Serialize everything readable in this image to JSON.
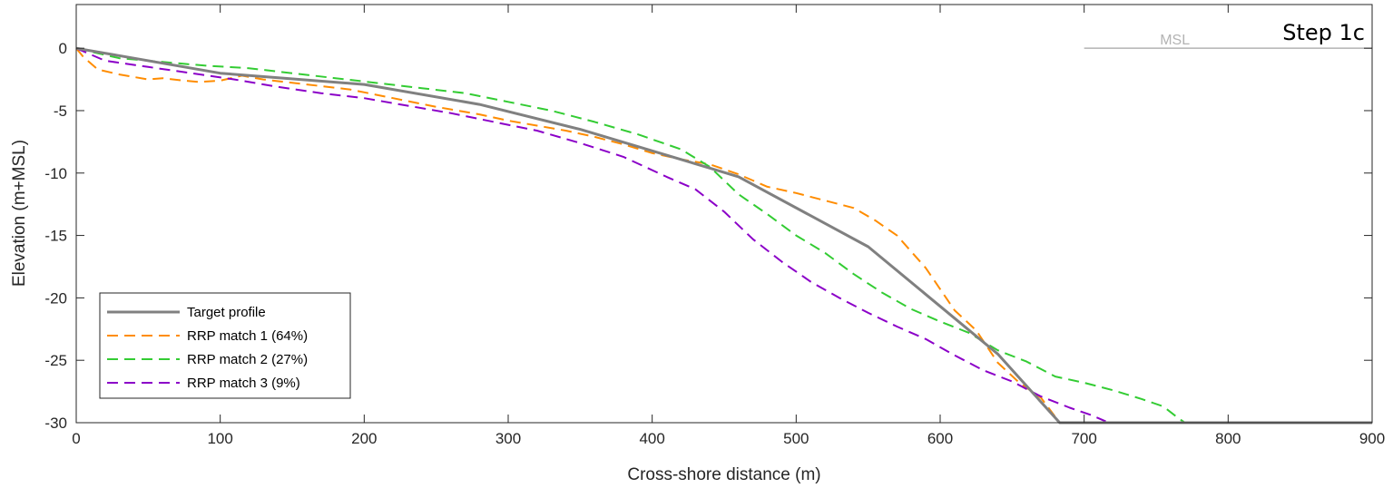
{
  "chart_data": {
    "type": "line",
    "xlabel": "Cross-shore distance (m)",
    "ylabel": "Elevation (m+MSL)",
    "xlim": [
      0,
      900
    ],
    "ylim": [
      -30,
      3.5
    ],
    "xticks": [
      0,
      100,
      200,
      300,
      400,
      500,
      600,
      700,
      800,
      900
    ],
    "yticks": [
      0,
      -5,
      -10,
      -15,
      -20,
      -25,
      -30
    ],
    "grid": false,
    "legend_position": "bottom-left",
    "annotations": {
      "step_label": "Step 1c",
      "msl_label": "MSL",
      "msl_line": {
        "x": [
          700,
          900
        ],
        "y": 0
      }
    },
    "series": [
      {
        "name": "Target profile",
        "color": "#808080",
        "style": "solid",
        "x": [
          0,
          100,
          200,
          280,
          350,
          440,
          460,
          550,
          640,
          683,
          900
        ],
        "y": [
          0,
          -2,
          -2.9,
          -4.5,
          -6.5,
          -9.6,
          -10.3,
          -15.9,
          -24.5,
          -30,
          -30
        ]
      },
      {
        "name": "RRP match 1 (64%)",
        "color": "#ff8c00",
        "style": "dashed",
        "x": [
          0,
          5,
          15,
          30,
          50,
          60,
          75,
          85,
          100,
          115,
          130,
          160,
          190,
          220,
          250,
          280,
          300,
          320,
          340,
          360,
          380,
          400,
          420,
          440,
          460,
          480,
          500,
          520,
          540,
          555,
          570,
          590,
          610,
          625,
          640,
          655,
          670,
          683
        ],
        "y": [
          0,
          -0.7,
          -1.7,
          -2.1,
          -2.5,
          -2.4,
          -2.6,
          -2.7,
          -2.6,
          -2.2,
          -2.5,
          -2.9,
          -3.3,
          -4.0,
          -4.7,
          -5.3,
          -5.8,
          -6.2,
          -6.6,
          -7.1,
          -7.7,
          -8.4,
          -8.9,
          -9.3,
          -10.1,
          -11.1,
          -11.6,
          -12.2,
          -12.8,
          -13.8,
          -15.0,
          -17.6,
          -21.0,
          -22.6,
          -25.2,
          -26.8,
          -28.0,
          -30
        ]
      },
      {
        "name": "RRP match 2 (27%)",
        "color": "#33cc33",
        "style": "dashed",
        "x": [
          0,
          30,
          60,
          90,
          120,
          150,
          180,
          210,
          240,
          270,
          300,
          330,
          360,
          390,
          420,
          440,
          460,
          480,
          500,
          520,
          540,
          560,
          580,
          600,
          620,
          640,
          660,
          680,
          700,
          720,
          740,
          755,
          765,
          770
        ],
        "y": [
          0,
          -0.8,
          -1.1,
          -1.4,
          -1.6,
          -2.0,
          -2.4,
          -2.8,
          -3.2,
          -3.6,
          -4.3,
          -5.0,
          -5.9,
          -6.9,
          -8.1,
          -9.5,
          -11.7,
          -13.3,
          -15.0,
          -16.4,
          -18.1,
          -19.6,
          -20.9,
          -21.9,
          -22.8,
          -24.2,
          -25.1,
          -26.3,
          -26.8,
          -27.4,
          -28.1,
          -28.7,
          -29.6,
          -30
        ]
      },
      {
        "name": "RRP match 3 (9%)",
        "color": "#8b00c8",
        "style": "dashed",
        "x": [
          0,
          20,
          50,
          80,
          110,
          140,
          170,
          200,
          230,
          260,
          290,
          320,
          350,
          380,
          410,
          430,
          450,
          470,
          490,
          510,
          530,
          550,
          570,
          590,
          610,
          630,
          650,
          670,
          690,
          705,
          715
        ],
        "y": [
          0,
          -1.0,
          -1.5,
          -2.0,
          -2.5,
          -3.1,
          -3.6,
          -4.0,
          -4.6,
          -5.2,
          -5.9,
          -6.6,
          -7.6,
          -8.7,
          -10.3,
          -11.3,
          -13.1,
          -15.3,
          -17.1,
          -18.7,
          -20.0,
          -21.2,
          -22.3,
          -23.3,
          -24.6,
          -25.8,
          -26.7,
          -27.9,
          -28.8,
          -29.4,
          -29.9
        ]
      }
    ]
  }
}
